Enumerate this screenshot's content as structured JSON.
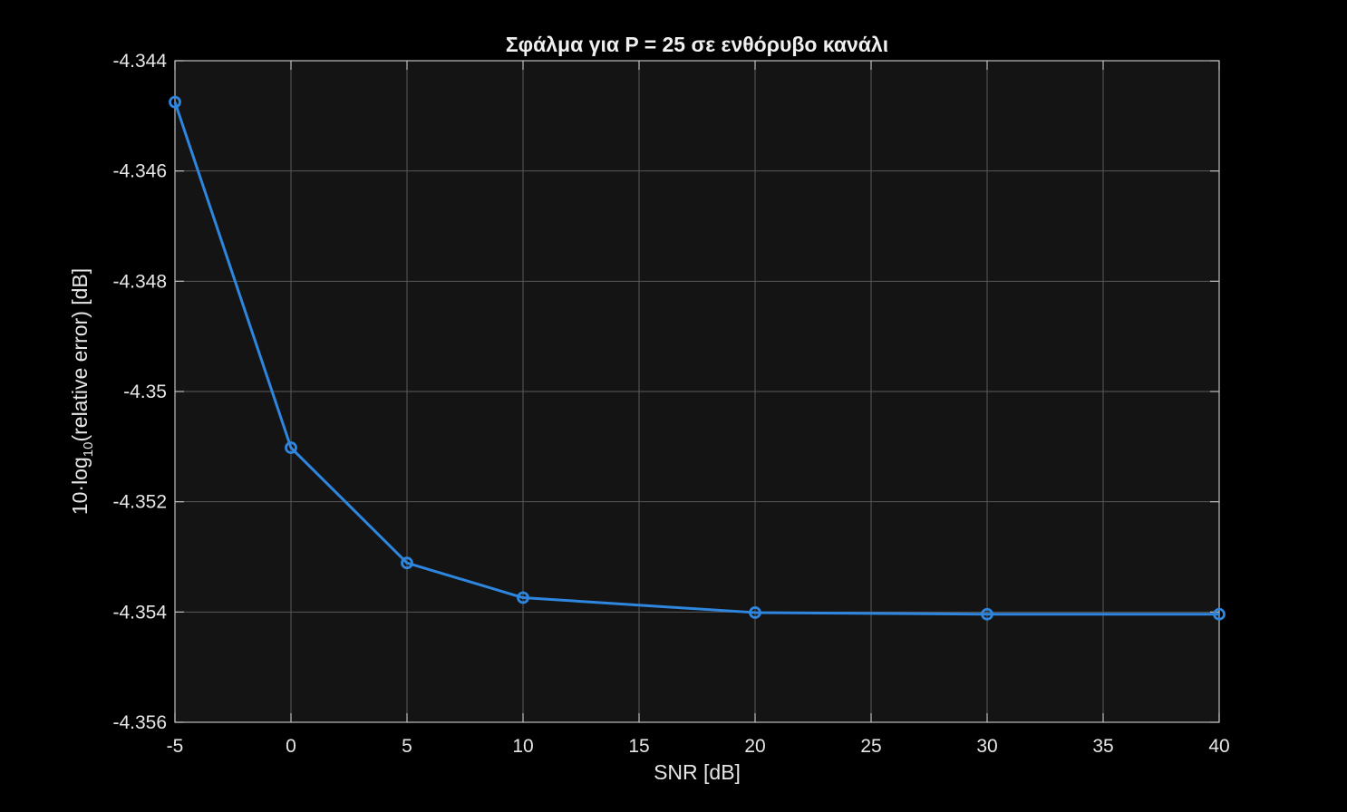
{
  "chart_data": {
    "type": "line",
    "title": "Σφάλμα για P = 25 σε ενθόρυβο κανάλι",
    "xlabel": "SNR [dB]",
    "ylabel": {
      "prefix": "10·log",
      "subscript": "10",
      "suffix": "(relative  error)  [dB]"
    },
    "xlim": [
      -5,
      40
    ],
    "ylim": [
      -4.356,
      -4.344
    ],
    "xticks": [
      -5,
      0,
      5,
      10,
      15,
      20,
      25,
      30,
      35,
      40
    ],
    "xtick_labels": [
      "-5",
      "0",
      "5",
      "10",
      "15",
      "20",
      "25",
      "30",
      "35",
      "40"
    ],
    "yticks": [
      -4.344,
      -4.346,
      -4.348,
      -4.35,
      -4.352,
      -4.354,
      -4.356
    ],
    "ytick_labels": [
      "-4.344",
      "-4.346",
      "-4.348",
      "-4.35",
      "-4.352",
      "-4.354",
      "-4.356"
    ],
    "grid": true,
    "series": [
      {
        "x": [
          -5,
          0,
          5,
          10,
          20,
          30,
          40
        ],
        "y": [
          -4.34475,
          -4.35102,
          -4.35311,
          -4.35374,
          -4.35401,
          -4.35404,
          -4.35404
        ],
        "color": "#2e86de",
        "marker": "circle"
      }
    ]
  },
  "colors": {
    "background": "#000000",
    "plot_area": "#141414",
    "grid": "#5a5a5a",
    "axis": "#bfbfbf",
    "text": "#e6e6e6"
  }
}
